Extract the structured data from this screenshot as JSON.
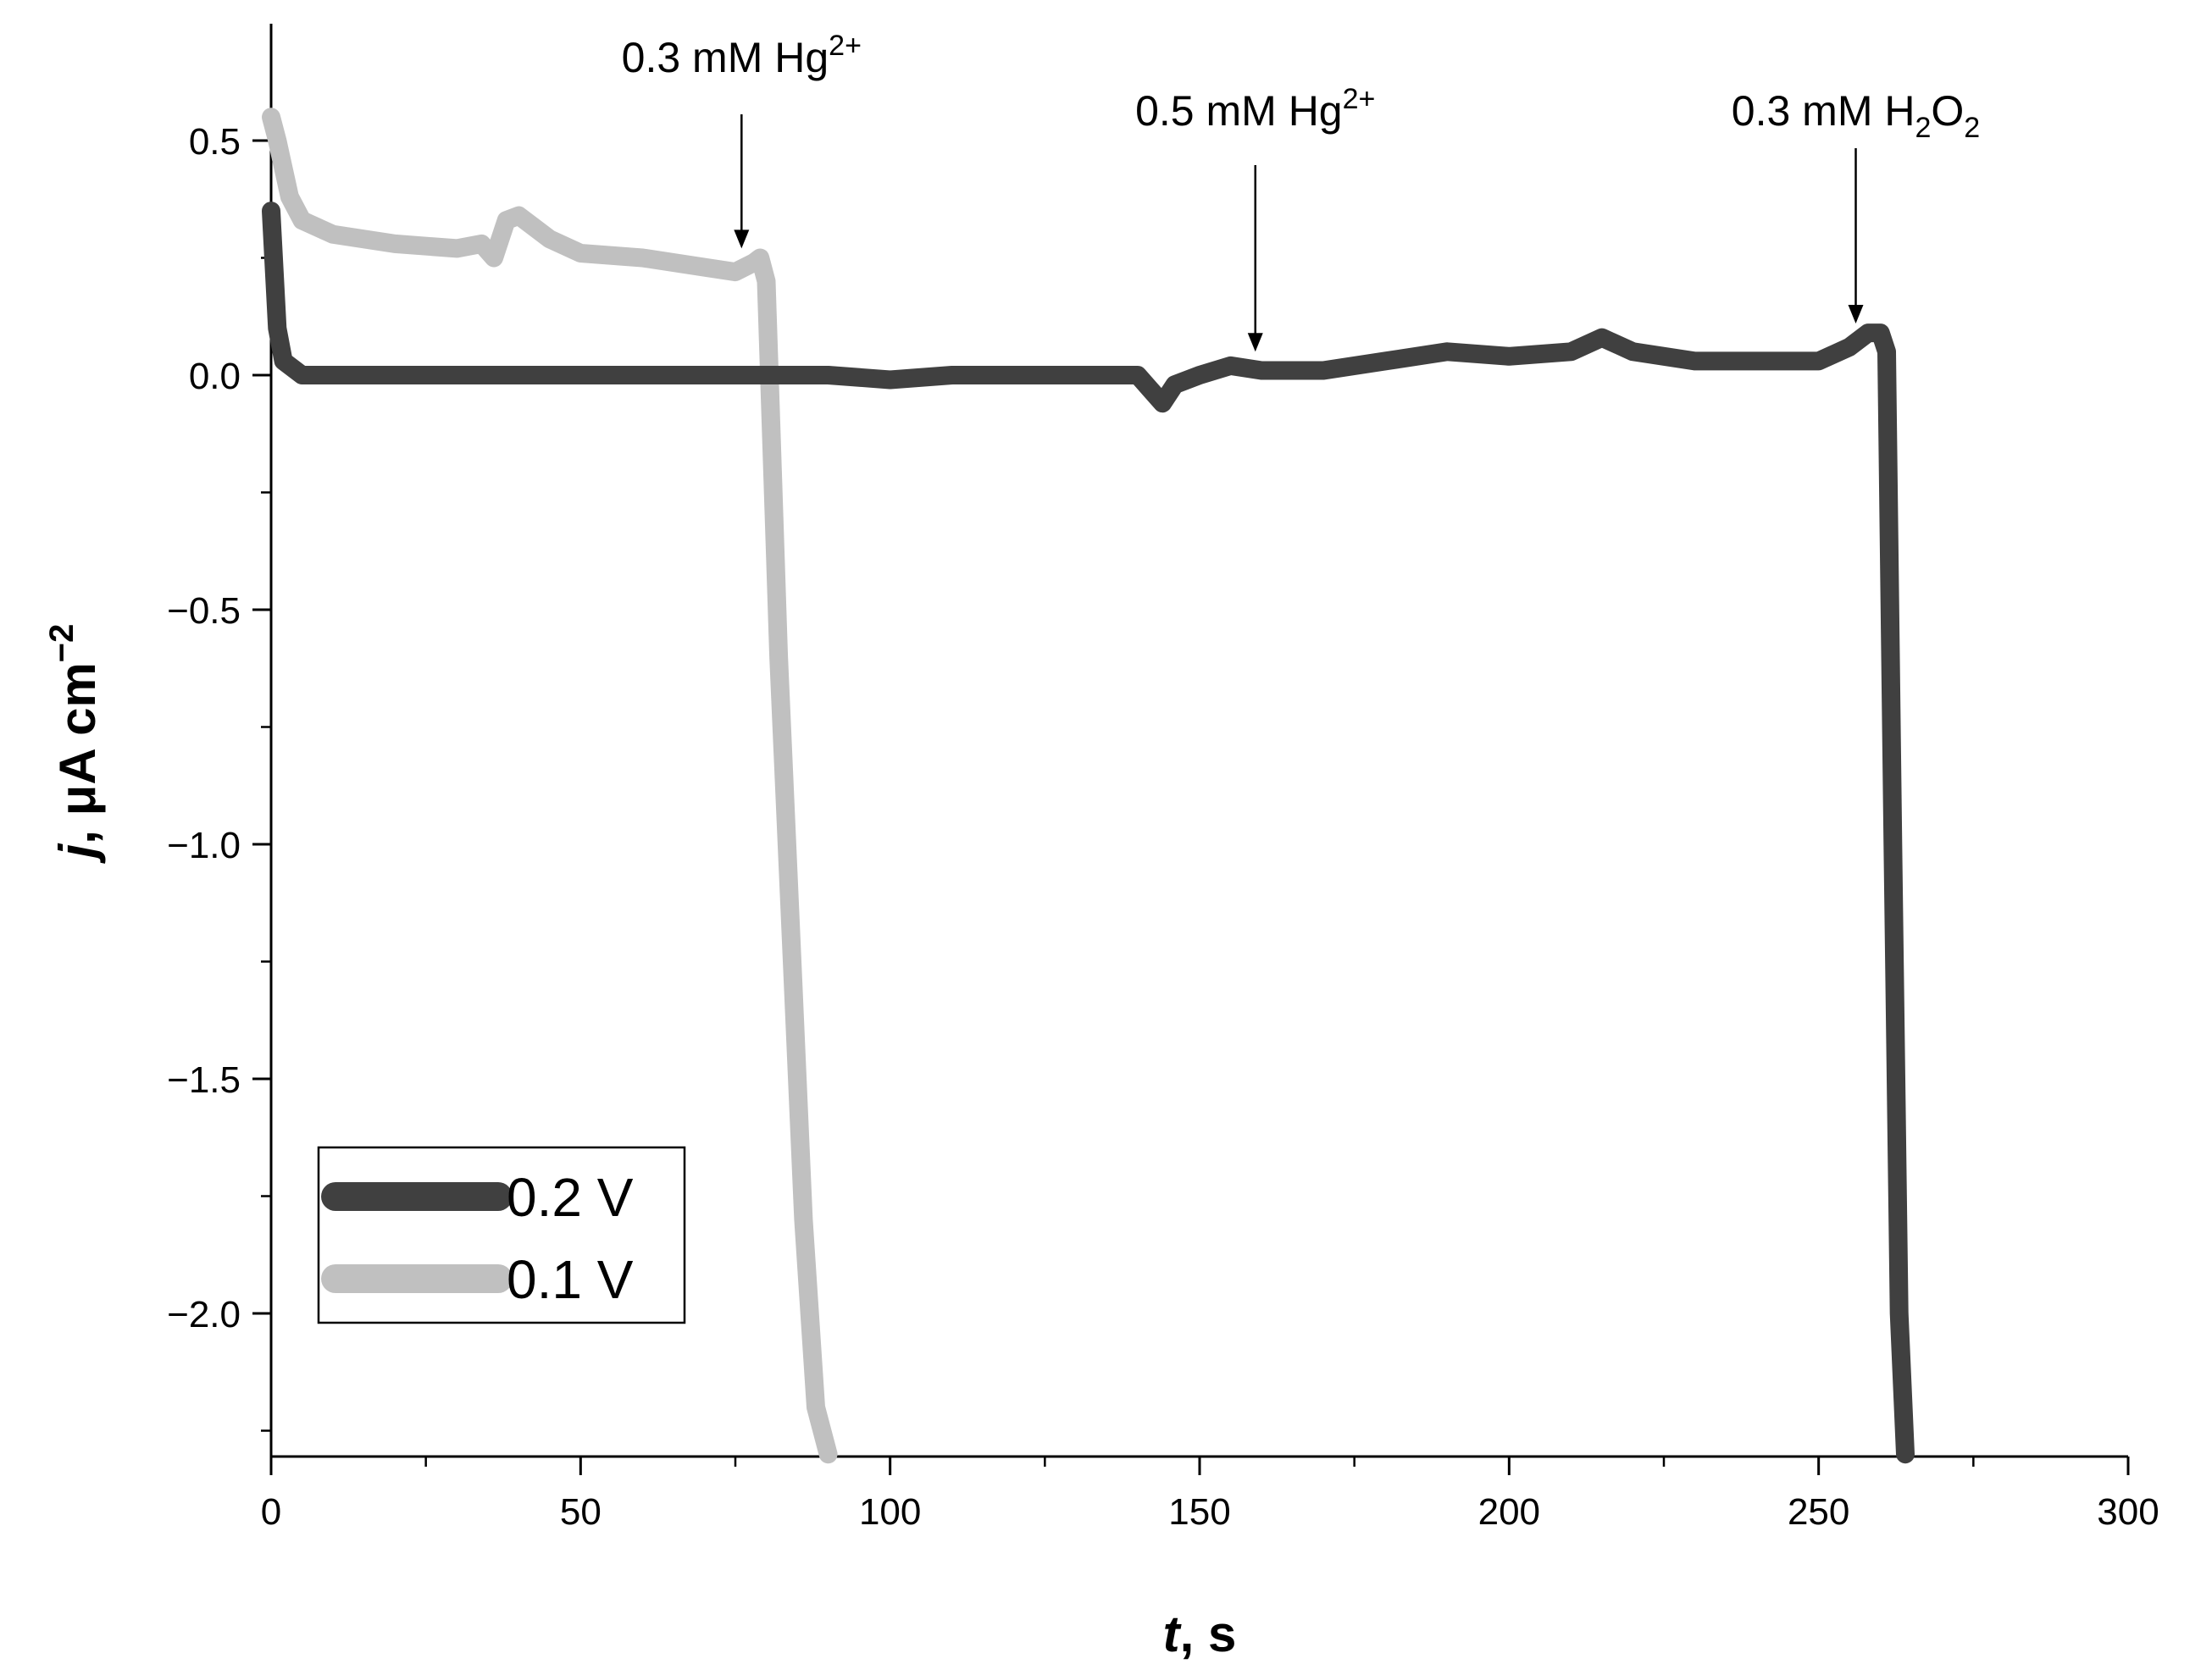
{
  "chart_data": {
    "type": "line",
    "title": "",
    "xlabel": {
      "italic": "t",
      "rest": ", s"
    },
    "ylabel": {
      "italic": "j",
      "rest": ", μA cm",
      "sup": "−2"
    },
    "xlim": [
      0,
      300
    ],
    "ylim": [
      -2.3,
      0.75
    ],
    "xticks": [
      0,
      50,
      100,
      150,
      200,
      250,
      300
    ],
    "xtick_labels": [
      "0",
      "50",
      "100",
      "150",
      "200",
      "250",
      "300"
    ],
    "xminor": [
      25,
      75,
      125,
      175,
      225,
      275
    ],
    "yticks": [
      0.5,
      0.0,
      -0.5,
      -1.0,
      -1.5,
      -2.0
    ],
    "ytick_labels": [
      "0.5",
      "0.0",
      "−0.5",
      "−1.0",
      "−1.5",
      "−2.0"
    ],
    "yminor": [
      0.25,
      -0.25,
      -0.75,
      -1.25,
      -1.75,
      -2.25
    ],
    "grid": false,
    "legend_position": "bottom-left",
    "series": [
      {
        "name": "0.2 V",
        "color": "#404040",
        "x": [
          0,
          1,
          2,
          5,
          10,
          20,
          30,
          40,
          50,
          60,
          70,
          80,
          90,
          100,
          110,
          120,
          130,
          140,
          142,
          144,
          146,
          150,
          155,
          160,
          170,
          180,
          190,
          200,
          210,
          215,
          220,
          230,
          240,
          250,
          255,
          258,
          260,
          261,
          262,
          263,
          264
        ],
        "y": [
          0.35,
          0.1,
          0.03,
          0.0,
          0.0,
          0.0,
          0.0,
          0.0,
          0.0,
          0.0,
          0.0,
          0.0,
          0.0,
          -0.01,
          0.0,
          0.0,
          0.0,
          0.0,
          -0.03,
          -0.06,
          -0.02,
          0.0,
          0.02,
          0.01,
          0.01,
          0.03,
          0.05,
          0.04,
          0.05,
          0.08,
          0.05,
          0.03,
          0.03,
          0.03,
          0.06,
          0.09,
          0.09,
          0.05,
          -1.0,
          -2.0,
          -2.3
        ]
      },
      {
        "name": "0.1 V",
        "color": "#c0c0c0",
        "x": [
          0,
          1,
          3,
          5,
          10,
          20,
          30,
          34,
          36,
          38,
          40,
          45,
          50,
          60,
          70,
          75,
          78,
          79,
          80,
          81,
          82,
          84,
          86,
          88,
          90
        ],
        "y": [
          0.55,
          0.5,
          0.38,
          0.33,
          0.3,
          0.28,
          0.27,
          0.28,
          0.25,
          0.33,
          0.34,
          0.29,
          0.26,
          0.25,
          0.23,
          0.22,
          0.24,
          0.25,
          0.2,
          -0.2,
          -0.6,
          -1.2,
          -1.8,
          -2.2,
          -2.3
        ]
      }
    ],
    "annotations": [
      {
        "base": "0.3 mM Hg",
        "sup": "2+",
        "sub": "",
        "tail": "",
        "x": 76,
        "y": 0.27
      },
      {
        "base": "0.5 mM Hg",
        "sup": "2+",
        "sub": "",
        "tail": "",
        "x": 159,
        "y": 0.05
      },
      {
        "base": "0.3 mM H",
        "sup": "",
        "sub": "2",
        "tail": "O",
        "sub2": "2",
        "x": 256,
        "y": 0.11
      }
    ]
  }
}
